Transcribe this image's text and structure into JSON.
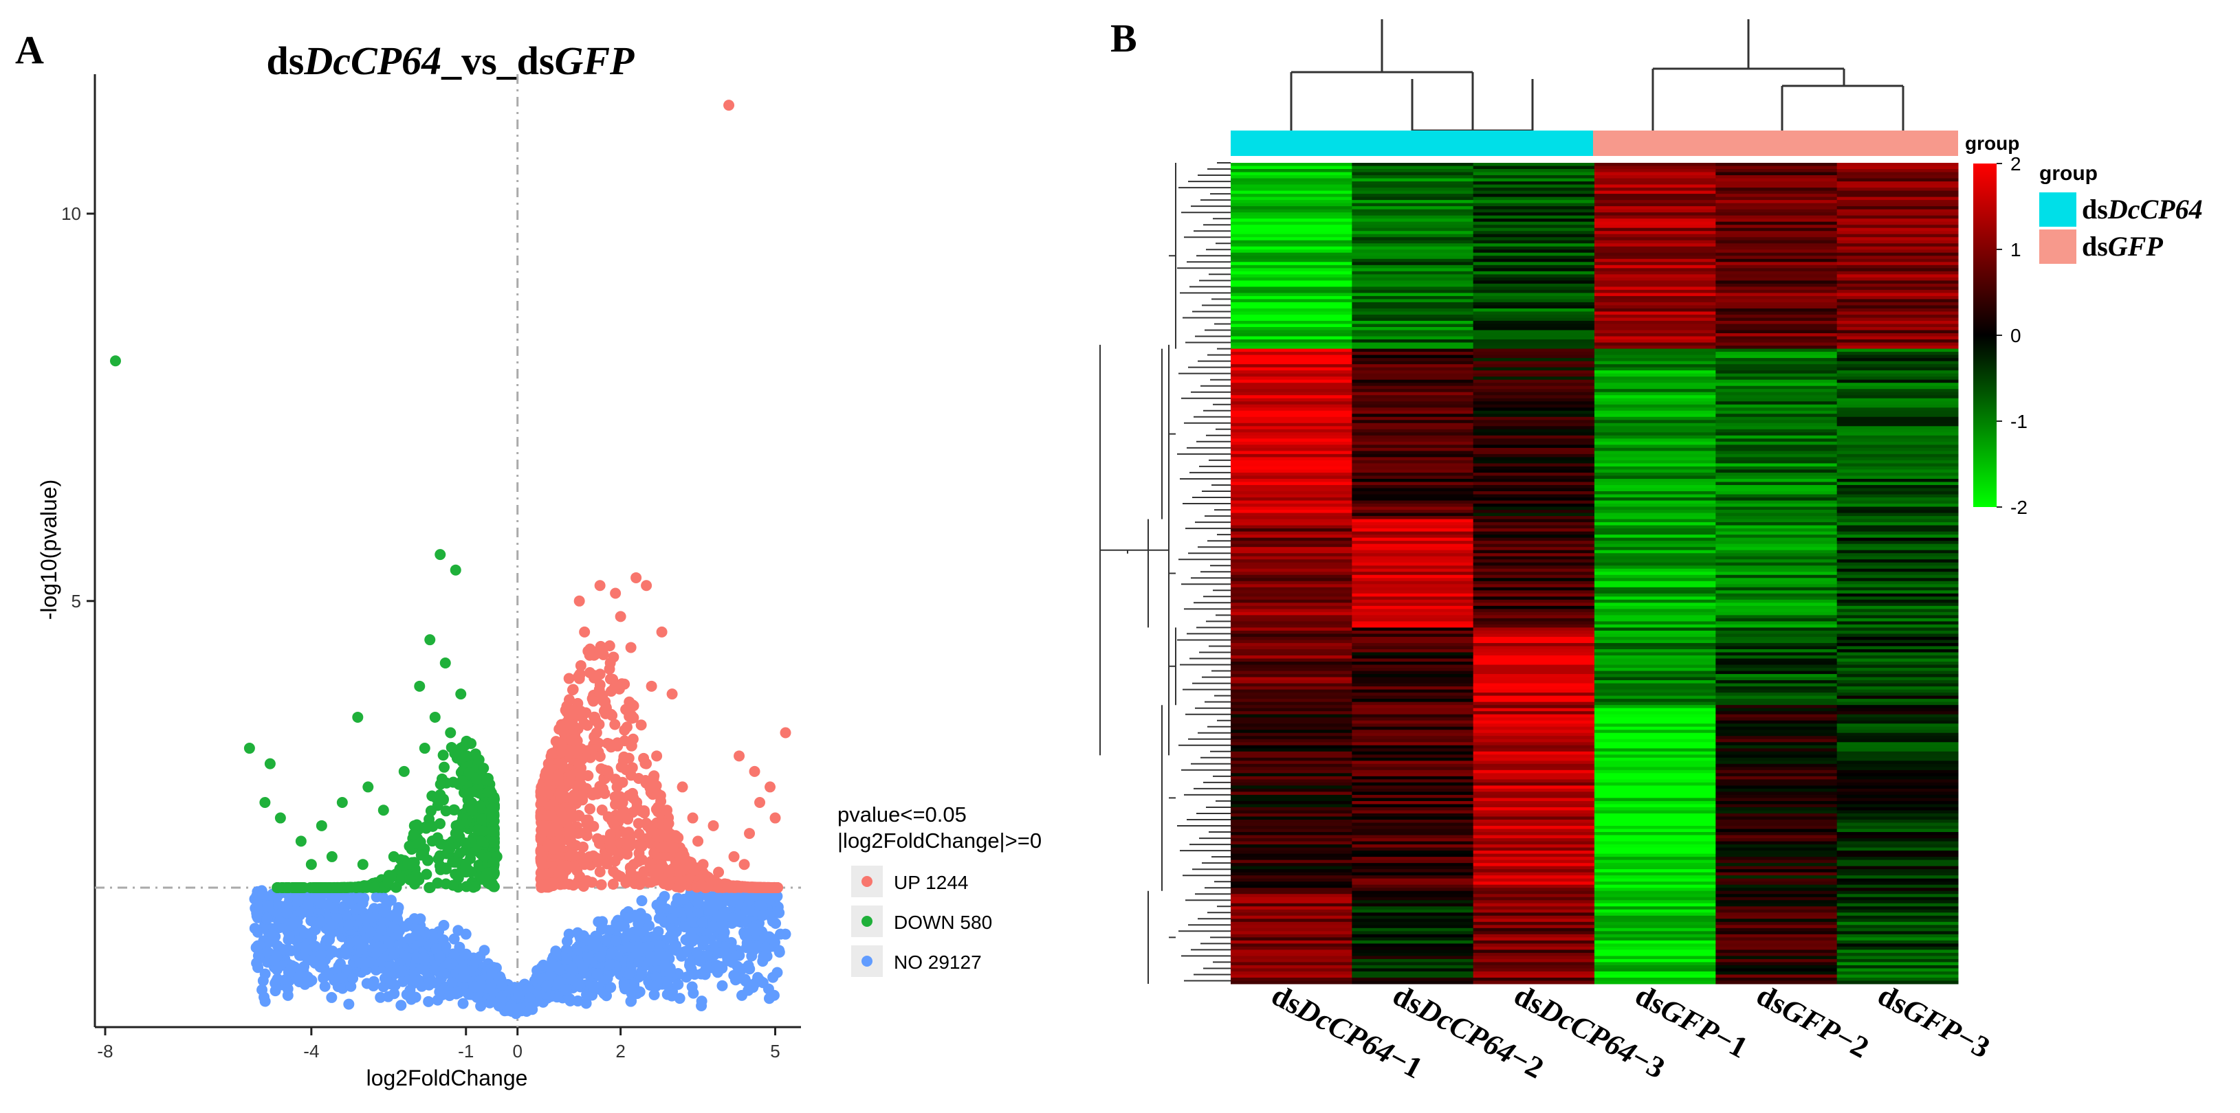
{
  "panels": {
    "a": {
      "letter": "A"
    },
    "b": {
      "letter": "B"
    }
  },
  "colors": {
    "up": "#f8766d",
    "down": "#1fb03a",
    "no": "#619cff",
    "group_dsDcCP64": "#00dfe8",
    "group_dsGFP": "#f7998c",
    "heat_low": "#00ff00",
    "heat_mid": "#000000",
    "heat_high": "#ff0000"
  },
  "chart_data": [
    {
      "type": "scatter",
      "title": {
        "prefix": "ds",
        "gene": "DcCP64",
        "middle": "_vs_ds",
        "control": "GFP"
      },
      "xlabel": "log2FoldChange",
      "ylabel": "-log10(pvalue)",
      "xlim": [
        -8.2,
        5.5
      ],
      "ylim": [
        -0.5,
        11.8
      ],
      "x_ticks": [
        -8,
        -4,
        -1,
        0,
        2,
        5
      ],
      "y_ticks": [
        5,
        10
      ],
      "vline": 0,
      "hline": 1.3,
      "grid": false,
      "legend": {
        "title_line1": "pvalue<=0.05",
        "title_line2": "|log2FoldChange|>=0",
        "position": "right",
        "entries": [
          {
            "key": "up",
            "label": "UP 1244"
          },
          {
            "key": "down",
            "label": "DOWN 580"
          },
          {
            "key": "no",
            "label": "NO 29127"
          }
        ]
      },
      "series": [
        {
          "name": "UP 1244",
          "key": "up",
          "points": [
            [
              4.1,
              11.4
            ],
            [
              1.6,
              5.2
            ],
            [
              2.3,
              5.3
            ],
            [
              2.5,
              5.2
            ],
            [
              1.2,
              5.0
            ],
            [
              1.9,
              5.1
            ],
            [
              1.3,
              4.6
            ],
            [
              2.0,
              4.8
            ],
            [
              2.8,
              4.6
            ],
            [
              1.8,
              4.2
            ],
            [
              2.2,
              4.4
            ],
            [
              1.4,
              4.3
            ],
            [
              1.0,
              4.0
            ],
            [
              2.6,
              3.9
            ],
            [
              3.0,
              3.8
            ],
            [
              1.7,
              3.7
            ],
            [
              5.2,
              3.3
            ],
            [
              4.3,
              3.0
            ],
            [
              4.6,
              2.8
            ],
            [
              4.9,
              2.6
            ],
            [
              4.7,
              2.4
            ],
            [
              5.0,
              2.2
            ],
            [
              4.5,
              2.0
            ],
            [
              3.8,
              2.1
            ],
            [
              3.5,
              1.9
            ],
            [
              4.2,
              1.7
            ],
            [
              2.9,
              2.3
            ],
            [
              3.2,
              2.6
            ],
            [
              2.7,
              3.0
            ],
            [
              3.4,
              2.2
            ],
            [
              2.4,
              3.4
            ],
            [
              2.1,
              3.6
            ],
            [
              1.5,
              3.5
            ],
            [
              0.9,
              3.3
            ],
            [
              0.6,
              2.9
            ],
            [
              0.5,
              2.1
            ],
            [
              0.7,
              1.8
            ],
            [
              1.1,
              2.5
            ],
            [
              1.9,
              2.7
            ],
            [
              2.5,
              2.9
            ],
            [
              3.6,
              1.6
            ],
            [
              3.9,
              1.5
            ],
            [
              4.4,
              1.6
            ],
            [
              2.2,
              1.5
            ],
            [
              1.3,
              1.6
            ],
            [
              0.8,
              1.5
            ]
          ]
        },
        {
          "name": "DOWN 580",
          "key": "down",
          "points": [
            [
              -7.8,
              8.1
            ],
            [
              -1.5,
              5.6
            ],
            [
              -1.2,
              5.4
            ],
            [
              -1.7,
              4.5
            ],
            [
              -1.4,
              4.2
            ],
            [
              -1.9,
              3.9
            ],
            [
              -1.1,
              3.8
            ],
            [
              -1.6,
              3.5
            ],
            [
              -3.1,
              3.5
            ],
            [
              -5.2,
              3.1
            ],
            [
              -4.8,
              2.9
            ],
            [
              -4.9,
              2.4
            ],
            [
              -4.6,
              2.2
            ],
            [
              -4.2,
              1.9
            ],
            [
              -3.8,
              2.1
            ],
            [
              -3.4,
              2.4
            ],
            [
              -2.9,
              2.6
            ],
            [
              -2.6,
              2.3
            ],
            [
              -2.2,
              2.8
            ],
            [
              -2.0,
              2.1
            ],
            [
              -1.8,
              3.1
            ],
            [
              -1.3,
              3.3
            ],
            [
              -1.0,
              3.0
            ],
            [
              -0.8,
              2.7
            ],
            [
              -0.5,
              2.2
            ],
            [
              -0.4,
              1.7
            ],
            [
              -0.7,
              1.9
            ],
            [
              -1.2,
              2.0
            ],
            [
              -1.5,
              2.5
            ],
            [
              -2.4,
              1.7
            ],
            [
              -3.0,
              1.6
            ],
            [
              -3.6,
              1.7
            ],
            [
              -4.0,
              1.6
            ],
            [
              -0.9,
              1.5
            ],
            [
              -0.6,
              1.4
            ]
          ]
        },
        {
          "name": "NO 29127",
          "key": "no",
          "points": [
            [
              -4.8,
              0.6
            ],
            [
              -4.1,
              0.5
            ],
            [
              5.1,
              0.7
            ],
            [
              5.2,
              0.7
            ],
            [
              -3.5,
              0.9
            ],
            [
              -2.5,
              0.6
            ],
            [
              -1.5,
              0.4
            ],
            [
              -0.5,
              0.2
            ],
            [
              0.5,
              0.3
            ],
            [
              1.5,
              0.6
            ],
            [
              2.5,
              0.9
            ],
            [
              3.5,
              1.1
            ],
            [
              4.5,
              1.0
            ],
            [
              -3.0,
              1.1
            ],
            [
              -2.0,
              0.9
            ],
            [
              -1.0,
              0.7
            ],
            [
              1.0,
              0.7
            ],
            [
              2.0,
              0.8
            ],
            [
              3.0,
              0.9
            ],
            [
              4.0,
              0.8
            ]
          ]
        }
      ]
    },
    {
      "type": "heatmap",
      "columns": [
        {
          "id": "dsDcCP64-1",
          "prefix": "ds",
          "gene": "DcCP64",
          "suffix": "−1",
          "group": "group_dsDcCP64"
        },
        {
          "id": "dsDcCP64-2",
          "prefix": "ds",
          "gene": "DcCP64",
          "suffix": "−2",
          "group": "group_dsDcCP64"
        },
        {
          "id": "dsDcCP64-3",
          "prefix": "ds",
          "gene": "DcCP64",
          "suffix": "−3",
          "group": "group_dsDcCP64"
        },
        {
          "id": "dsGFP-1",
          "prefix": "ds",
          "gene": "GFP",
          "suffix": "−1",
          "group": "group_dsGFP"
        },
        {
          "id": "dsGFP-2",
          "prefix": "ds",
          "gene": "GFP",
          "suffix": "−2",
          "group": "group_dsGFP"
        },
        {
          "id": "dsGFP-3",
          "prefix": "ds",
          "gene": "GFP",
          "suffix": "−3",
          "group": "group_dsGFP"
        }
      ],
      "row_clusters": [
        {
          "rows": 60,
          "values": [
            -1.6,
            -0.8,
            -0.6,
            1.2,
            0.8,
            1.0
          ]
        },
        {
          "rows": 55,
          "values": [
            1.7,
            0.5,
            0.2,
            -1.2,
            -0.9,
            -0.6
          ]
        },
        {
          "rows": 35,
          "values": [
            1.0,
            1.6,
            0.4,
            -1.3,
            -1.0,
            -0.5
          ]
        },
        {
          "rows": 25,
          "values": [
            0.8,
            0.4,
            1.6,
            -1.0,
            -0.6,
            -0.4
          ]
        },
        {
          "rows": 60,
          "values": [
            0.3,
            0.5,
            1.4,
            -1.8,
            0.2,
            -0.3
          ]
        },
        {
          "rows": 30,
          "values": [
            1.0,
            -0.2,
            0.9,
            -1.6,
            0.4,
            -0.6
          ]
        }
      ],
      "color_scale": {
        "min": -2,
        "max": 2,
        "ticks": [
          2,
          1,
          0,
          -1,
          -2
        ]
      },
      "top_annotation_label": "group",
      "legend": {
        "title": "group",
        "position": "right",
        "entries": [
          {
            "key": "group_dsDcCP64",
            "prefix": "ds",
            "gene": "DcCP64"
          },
          {
            "key": "group_dsGFP",
            "prefix": "ds",
            "gene": "GFP"
          }
        ]
      }
    }
  ]
}
